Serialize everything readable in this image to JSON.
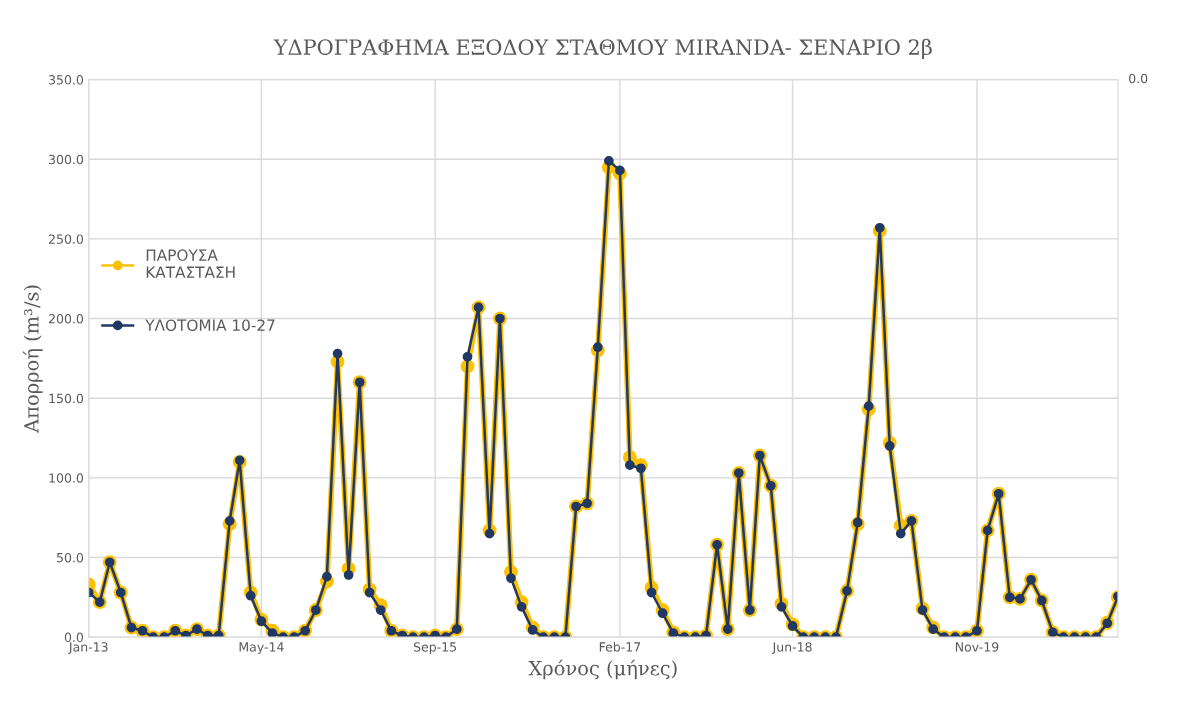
{
  "chart_data": {
    "type": "line",
    "title": "ΥΔΡΟΓΡΑΦΗΜΑ ΕΞΟΔΟΥ ΣΤΑΘΜΟΥ MIRANDA- ΣΕΝΑΡΙΟ 2β",
    "xlabel": "Χρόνος (μήνες)",
    "ylabel": "Απορροή (m³/s)",
    "x": [
      "2013-01",
      "2013-02",
      "2013-03",
      "2013-04",
      "2013-05",
      "2013-06",
      "2013-07",
      "2013-08",
      "2013-09",
      "2013-10",
      "2013-11",
      "2013-12",
      "2014-01",
      "2014-02",
      "2014-03",
      "2014-04",
      "2014-05",
      "2014-06",
      "2014-07",
      "2014-08",
      "2014-09",
      "2014-10",
      "2014-11",
      "2014-12",
      "2015-01",
      "2015-02",
      "2015-03",
      "2015-04",
      "2015-05",
      "2015-06",
      "2015-07",
      "2015-08",
      "2015-09",
      "2015-10",
      "2015-11",
      "2015-12",
      "2016-01",
      "2016-02",
      "2016-03",
      "2016-04",
      "2016-05",
      "2016-06",
      "2016-07",
      "2016-08",
      "2016-09",
      "2016-10",
      "2016-11",
      "2016-12",
      "2017-01",
      "2017-02",
      "2017-03",
      "2017-04",
      "2017-05",
      "2017-06",
      "2017-07",
      "2017-08",
      "2017-09",
      "2017-10",
      "2017-11",
      "2017-12",
      "2018-01",
      "2018-02",
      "2018-03",
      "2018-04",
      "2018-05",
      "2018-06",
      "2018-07",
      "2018-08",
      "2018-09",
      "2018-10",
      "2018-11",
      "2018-12",
      "2019-01",
      "2019-02",
      "2019-03",
      "2019-04",
      "2019-05",
      "2019-06",
      "2019-07",
      "2019-08",
      "2019-09",
      "2019-10",
      "2019-11",
      "2019-12",
      "2020-01",
      "2020-02",
      "2020-03",
      "2020-04",
      "2020-05",
      "2020-06",
      "2020-07",
      "2020-08",
      "2020-09",
      "2020-10",
      "2020-11",
      "2020-12"
    ],
    "series": [
      {
        "name": "ΠΑΡΟΥΣΑ ΚΑΤΑΣΤΑΣΗ",
        "color": "#ffc000",
        "values": [
          33,
          22,
          47,
          28,
          6,
          4,
          0,
          0,
          4,
          1,
          5,
          1,
          1,
          71,
          110,
          28,
          11,
          4,
          0,
          0,
          4,
          17,
          35,
          173,
          43,
          160,
          30,
          20,
          4,
          1,
          0,
          0,
          1,
          0,
          5,
          170,
          207,
          67,
          200,
          41,
          22,
          6,
          0,
          0,
          0,
          82,
          84,
          180,
          295,
          291,
          113,
          108,
          31,
          17,
          3,
          0,
          0,
          1,
          58,
          5,
          103,
          17,
          114,
          95,
          21,
          8,
          0,
          0,
          0,
          0,
          29,
          71,
          143,
          255,
          122,
          70,
          73,
          18,
          6,
          0,
          0,
          0,
          4,
          67,
          90,
          25,
          24,
          36,
          23,
          3,
          0,
          0,
          0,
          0,
          9,
          25
        ]
      },
      {
        "name": "ΥΛΟΤΟΜΙΑ 10-27",
        "color": "#203864",
        "values": [
          28,
          22,
          47,
          28,
          6,
          4,
          0,
          0,
          4,
          1,
          5,
          1,
          1,
          73,
          111,
          26,
          10,
          2.5,
          0,
          0,
          4,
          17,
          38,
          178,
          39,
          160,
          28,
          17,
          4,
          1,
          0,
          0,
          1,
          0,
          5,
          176,
          207,
          65,
          200,
          37,
          19,
          4.5,
          0,
          0,
          0,
          82,
          84,
          182,
          299,
          293,
          108,
          106,
          28,
          15,
          2.5,
          0,
          0,
          1,
          58,
          5,
          103,
          17,
          114,
          95,
          19,
          7,
          0,
          0,
          0,
          0,
          29,
          72,
          145,
          257,
          120,
          65,
          73,
          17,
          5,
          0,
          0,
          0,
          4,
          67,
          90,
          25,
          24,
          36,
          23,
          3,
          0,
          0,
          0,
          0,
          8.7,
          25.5
        ]
      }
    ],
    "xlim": [
      "2013-01",
      "2020-12"
    ],
    "xticks": [
      {
        "value": "2013-01",
        "label": "Jan-13"
      },
      {
        "value": "2014-05",
        "label": "May-14"
      },
      {
        "value": "2015-09",
        "label": "Sep-15"
      },
      {
        "value": "2017-02",
        "label": "Feb-17"
      },
      {
        "value": "2018-06",
        "label": "Jun-18"
      },
      {
        "value": "2019-11",
        "label": "Nov-19"
      }
    ],
    "ylim": [
      0,
      350
    ],
    "yticks": [
      {
        "value": 0,
        "label": "0.0"
      },
      {
        "value": 50,
        "label": "50.0"
      },
      {
        "value": 100,
        "label": "100.0"
      },
      {
        "value": 150,
        "label": "150.0"
      },
      {
        "value": 200,
        "label": "200.0"
      },
      {
        "value": 250,
        "label": "250.0"
      },
      {
        "value": 300,
        "label": "300.0"
      },
      {
        "value": 350,
        "label": "350.0"
      }
    ],
    "annotations": [
      "0.0"
    ],
    "grid": true,
    "legend": "left",
    "marker": "circle",
    "line_style": "solid"
  }
}
